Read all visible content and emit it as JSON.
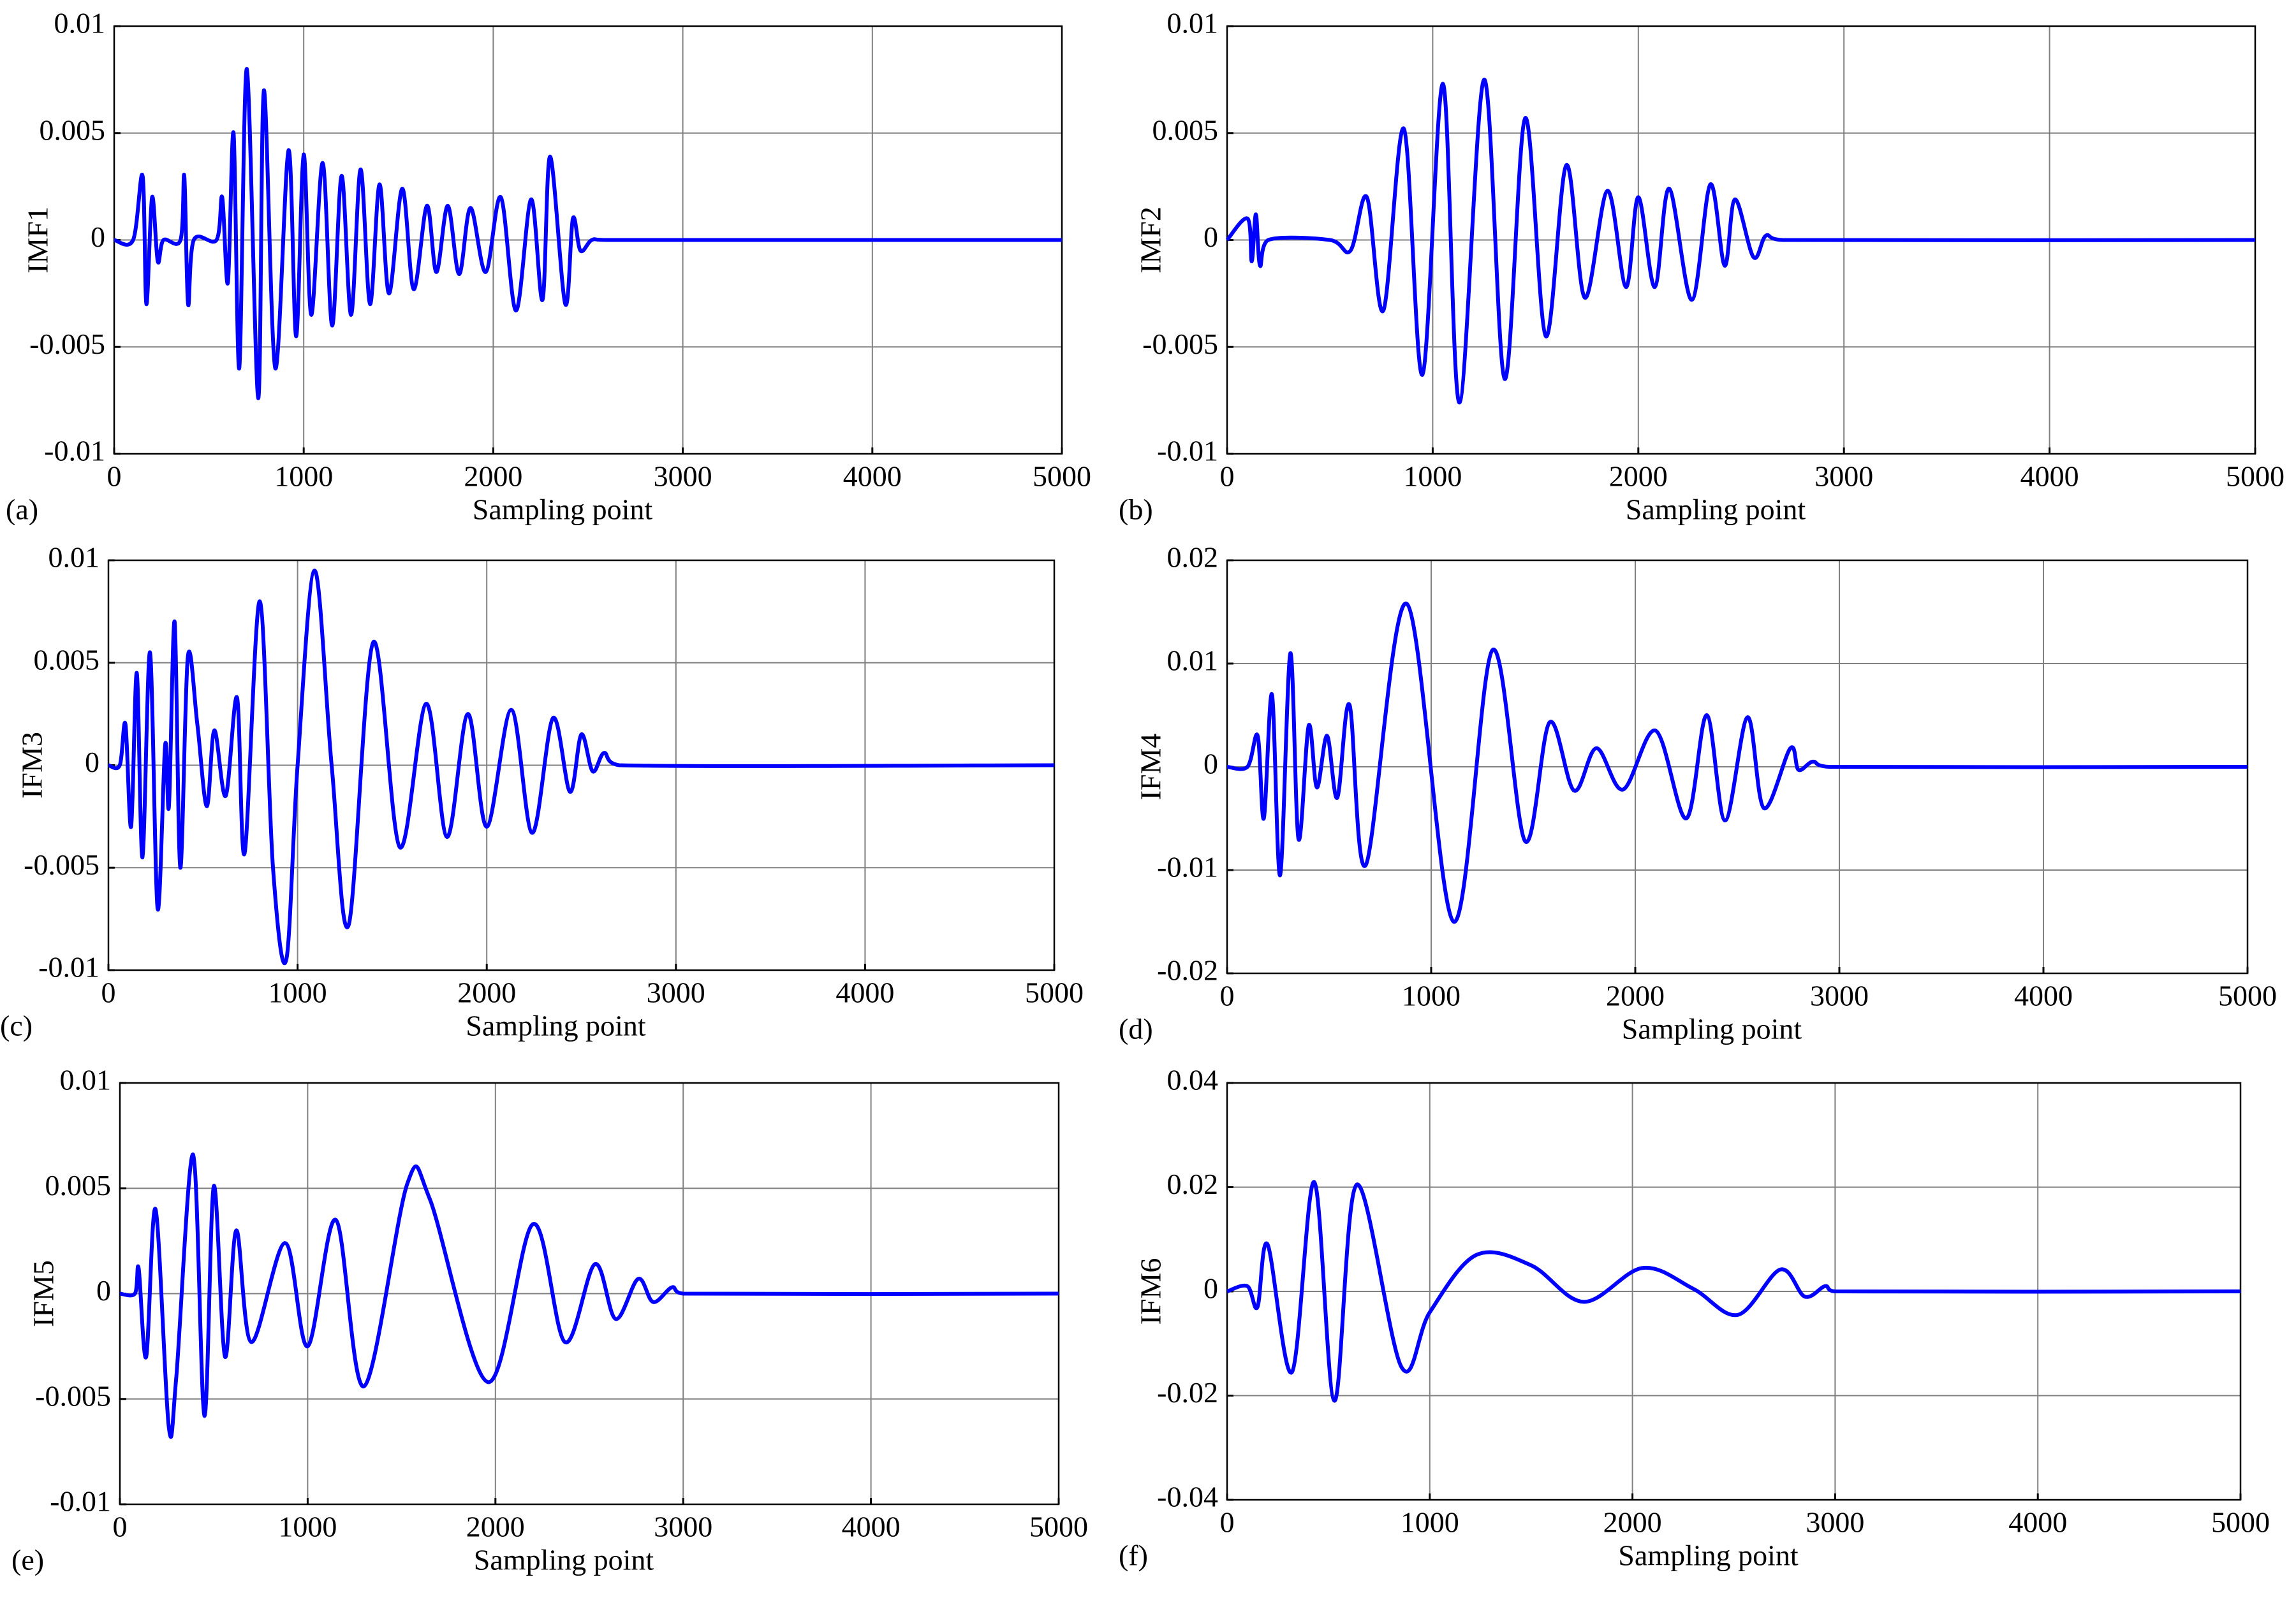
{
  "chart_data": [
    {
      "type": "line",
      "label": "(a)",
      "ylabel": "IMF1",
      "xlabel": "Sampling point",
      "color": "#0000ff",
      "grid": true,
      "xlim": [
        0,
        5000
      ],
      "ylim": [
        -0.01,
        0.01
      ],
      "xticks": [
        0,
        1000,
        2000,
        3000,
        4000,
        5000
      ],
      "yticks": [
        -0.01,
        -0.005,
        0,
        0.005,
        0.01
      ],
      "x": [
        0,
        100,
        150,
        170,
        200,
        230,
        260,
        350,
        370,
        390,
        420,
        540,
        570,
        600,
        630,
        660,
        700,
        760,
        790,
        850,
        920,
        960,
        1000,
        1040,
        1100,
        1150,
        1200,
        1250,
        1300,
        1350,
        1400,
        1450,
        1520,
        1580,
        1650,
        1700,
        1760,
        1820,
        1880,
        1960,
        2040,
        2120,
        2200,
        2260,
        2300,
        2380,
        2420,
        2460,
        2520,
        2600,
        3000,
        5000
      ],
      "values": [
        0,
        0,
        0.003,
        -0.003,
        0.002,
        -0.001,
        0,
        0,
        0.003,
        -0.003,
        0,
        0,
        0.002,
        -0.002,
        0.005,
        -0.006,
        0.008,
        -0.0074,
        0.007,
        -0.006,
        0.0042,
        -0.0045,
        0.004,
        -0.0035,
        0.0036,
        -0.004,
        0.003,
        -0.0035,
        0.0033,
        -0.003,
        0.0026,
        -0.0025,
        0.0024,
        -0.0023,
        0.0016,
        -0.0015,
        0.0016,
        -0.0016,
        0.0015,
        -0.0015,
        0.002,
        -0.0033,
        0.0019,
        -0.0028,
        0.0039,
        -0.003,
        0.001,
        -0.0005,
        0,
        0,
        0,
        0
      ]
    },
    {
      "type": "line",
      "label": "(b)",
      "ylabel": "IMF2",
      "xlabel": "Sampling point",
      "color": "#0000ff",
      "grid": true,
      "xlim": [
        0,
        5000
      ],
      "ylim": [
        -0.01,
        0.01
      ],
      "xticks": [
        0,
        1000,
        2000,
        3000,
        4000,
        5000
      ],
      "yticks": [
        -0.01,
        -0.005,
        0,
        0.005,
        0.01
      ],
      "x": [
        0,
        100,
        120,
        140,
        160,
        200,
        500,
        600,
        680,
        760,
        860,
        950,
        1050,
        1130,
        1250,
        1350,
        1450,
        1550,
        1650,
        1740,
        1850,
        1940,
        2000,
        2080,
        2150,
        2260,
        2350,
        2420,
        2470,
        2560,
        2620,
        2700,
        5000
      ],
      "values": [
        0,
        0.001,
        -0.001,
        0.0012,
        -0.0012,
        0,
        0,
        -0.0005,
        0.002,
        -0.0033,
        0.0052,
        -0.0063,
        0.0073,
        -0.0076,
        0.0075,
        -0.0065,
        0.0057,
        -0.0045,
        0.0035,
        -0.0027,
        0.0023,
        -0.0022,
        0.002,
        -0.0022,
        0.0024,
        -0.0028,
        0.0026,
        -0.0012,
        0.0019,
        -0.0008,
        0.0002,
        0,
        0
      ]
    },
    {
      "type": "line",
      "label": "(c)",
      "ylabel": "IFM3",
      "xlabel": "Sampling point",
      "color": "#0000ff",
      "grid": true,
      "xlim": [
        0,
        5000
      ],
      "ylim": [
        -0.01,
        0.01
      ],
      "xticks": [
        0,
        1000,
        2000,
        3000,
        4000,
        5000
      ],
      "yticks": [
        -0.01,
        -0.005,
        0,
        0.005,
        0.01
      ],
      "x": [
        0,
        60,
        90,
        120,
        150,
        180,
        220,
        260,
        300,
        320,
        350,
        380,
        420,
        470,
        520,
        560,
        620,
        680,
        720,
        800,
        870,
        940,
        1000,
        1090,
        1180,
        1270,
        1400,
        1540,
        1680,
        1790,
        1900,
        2000,
        2130,
        2240,
        2350,
        2440,
        2500,
        2560,
        2620,
        2700,
        5000
      ],
      "values": [
        0,
        0,
        0.002,
        -0.003,
        0.0045,
        -0.0045,
        0.0055,
        -0.007,
        0.001,
        -0.002,
        0.007,
        -0.005,
        0.0053,
        0.002,
        -0.002,
        0.0017,
        -0.0015,
        0.0033,
        -0.0043,
        0.008,
        -0.005,
        -0.0095,
        0,
        0.0095,
        0,
        -0.0078,
        0.006,
        -0.004,
        0.003,
        -0.0035,
        0.0025,
        -0.003,
        0.0027,
        -0.0033,
        0.0023,
        -0.0013,
        0.0015,
        -0.0003,
        0.0006,
        0,
        0
      ]
    },
    {
      "type": "line",
      "label": "(d)",
      "ylabel": "IFM4",
      "xlabel": "Sampling point",
      "color": "#0000ff",
      "grid": true,
      "xlim": [
        0,
        5000
      ],
      "ylim": [
        -0.02,
        0.02
      ],
      "xticks": [
        0,
        1000,
        2000,
        3000,
        4000,
        5000
      ],
      "yticks": [
        -0.02,
        -0.01,
        0,
        0.01,
        0.02
      ],
      "x": [
        0,
        100,
        150,
        180,
        220,
        260,
        310,
        350,
        400,
        440,
        490,
        540,
        600,
        680,
        880,
        1110,
        1300,
        1460,
        1580,
        1700,
        1810,
        1940,
        2100,
        2250,
        2350,
        2440,
        2550,
        2630,
        2760,
        2800,
        2870,
        2950,
        5000
      ],
      "values": [
        0,
        0,
        0.003,
        -0.005,
        0.007,
        -0.0105,
        0.011,
        -0.007,
        0.004,
        -0.002,
        0.003,
        -0.003,
        0.006,
        -0.0095,
        0.0158,
        -0.015,
        0.0113,
        -0.0072,
        0.0043,
        -0.0023,
        0.0018,
        -0.0022,
        0.0035,
        -0.005,
        0.005,
        -0.0052,
        0.0048,
        -0.004,
        0.0018,
        -0.0003,
        0.0005,
        0,
        0
      ]
    },
    {
      "type": "line",
      "label": "(e)",
      "ylabel": "IFM5",
      "xlabel": "Sampling point",
      "color": "#0000ff",
      "grid": true,
      "xlim": [
        0,
        5000
      ],
      "ylim": [
        -0.01,
        0.01
      ],
      "xticks": [
        0,
        1000,
        2000,
        3000,
        4000,
        5000
      ],
      "yticks": [
        -0.01,
        -0.005,
        0,
        0.005,
        0.01
      ],
      "x": [
        0,
        80,
        100,
        140,
        190,
        260,
        300,
        390,
        450,
        500,
        560,
        620,
        700,
        880,
        1000,
        1150,
        1300,
        1530,
        1650,
        1960,
        2200,
        2370,
        2530,
        2640,
        2760,
        2840,
        2940,
        3000,
        5000
      ],
      "values": [
        0,
        0,
        0.0012,
        -0.003,
        0.004,
        -0.0063,
        -0.004,
        0.0066,
        -0.0058,
        0.0051,
        -0.003,
        0.003,
        -0.0023,
        0.0024,
        -0.0025,
        0.0035,
        -0.0044,
        0.0052,
        0.0045,
        -0.0042,
        0.0033,
        -0.0023,
        0.0014,
        -0.0012,
        0.0007,
        -0.0004,
        0.0003,
        0,
        0
      ]
    },
    {
      "type": "line",
      "label": "(f)",
      "ylabel": "IFM6",
      "xlabel": "Sampling point",
      "color": "#0000ff",
      "grid": true,
      "xlim": [
        0,
        5000
      ],
      "ylim": [
        -0.04,
        0.04
      ],
      "xticks": [
        0,
        1000,
        2000,
        3000,
        4000,
        5000
      ],
      "yticks": [
        -0.04,
        -0.02,
        0,
        0.02,
        0.04
      ],
      "x": [
        0,
        100,
        150,
        200,
        320,
        430,
        530,
        640,
        860,
        1000,
        1230,
        1500,
        1760,
        2050,
        2300,
        2520,
        2730,
        2850,
        2950,
        3000,
        5000
      ],
      "values": [
        0,
        0.001,
        -0.003,
        0.009,
        -0.0155,
        0.021,
        -0.021,
        0.0205,
        -0.0145,
        -0.004,
        0.007,
        0.005,
        -0.002,
        0.0045,
        0.0005,
        -0.0045,
        0.0042,
        -0.001,
        0.001,
        0,
        0
      ]
    }
  ]
}
